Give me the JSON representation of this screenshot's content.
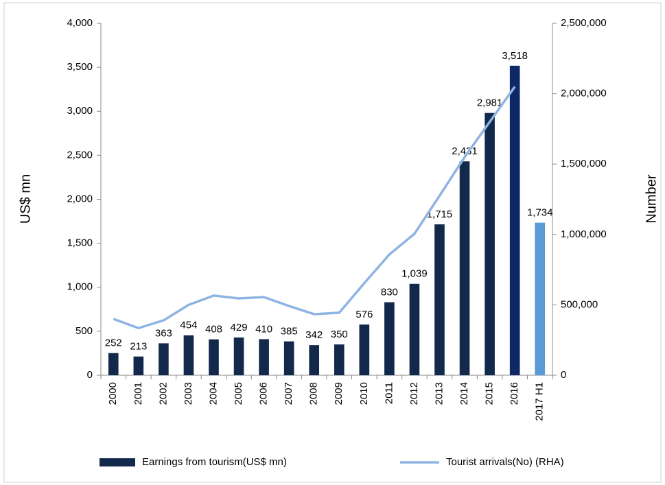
{
  "chart_data": {
    "type": "bar_line",
    "categories": [
      "2000",
      "2001",
      "2002",
      "2003",
      "2004",
      "2005",
      "2006",
      "2007",
      "2008",
      "2009",
      "2010",
      "2011",
      "2012",
      "2013",
      "2014",
      "2015",
      "2016",
      "2017 H1"
    ],
    "series": [
      {
        "name": "Earnings from tourism(US$ mn)",
        "type": "bar",
        "color": "#13294b",
        "colors": [
          "#13294b",
          "#13294b",
          "#13294b",
          "#13294b",
          "#13294b",
          "#13294b",
          "#13294b",
          "#13294b",
          "#13294b",
          "#13294b",
          "#13294b",
          "#13294b",
          "#13294b",
          "#13294b",
          "#13294b",
          "#13294b",
          "#0e2866",
          "#5b9bd5"
        ],
        "values": [
          252,
          213,
          363,
          454,
          408,
          429,
          410,
          385,
          342,
          350,
          576,
          830,
          1039,
          1715,
          2431,
          2981,
          3518,
          1734
        ],
        "value_labels": [
          "252",
          "213",
          "363",
          "454",
          "408",
          "429",
          "410",
          "385",
          "342",
          "350",
          "576",
          "830",
          "1,039",
          "1,715",
          "2,431",
          "2,981",
          "3,518",
          "1,734"
        ]
      },
      {
        "name": "Tourist arrivals(No) (RHA)",
        "type": "line",
        "axis": "y2",
        "color": "#8eb4e3",
        "values": [
          400000,
          335000,
          390000,
          500000,
          566000,
          546000,
          555000,
          492000,
          434000,
          444000,
          654000,
          858000,
          1005000,
          1275000,
          1550000,
          1800000,
          2050000,
          null
        ]
      }
    ],
    "ylabel": "US$ mn",
    "y2label": "Number",
    "ylim": [
      0,
      4000
    ],
    "yticks": [
      0,
      500,
      {
        "value": 1000,
        "label": "1,000"
      },
      {
        "value": 1500,
        "label": "1,500"
      },
      {
        "value": 2000,
        "label": "2,000"
      },
      {
        "value": 2500,
        "label": "2,500"
      },
      {
        "value": 3000,
        "label": "3,000"
      },
      {
        "value": 3500,
        "label": "3,500"
      },
      {
        "value": 4000,
        "label": "4,000"
      }
    ],
    "y2lim": [
      0,
      2500000
    ],
    "y2ticks": [
      0,
      {
        "value": 500000,
        "label": "500,000"
      },
      {
        "value": 1000000,
        "label": "1,000,000"
      },
      {
        "value": 1500000,
        "label": "1,500,000"
      },
      {
        "value": 2000000,
        "label": "2,000,000"
      },
      {
        "value": 2500000,
        "label": "2,500,000"
      }
    ],
    "legend": "bottom"
  }
}
